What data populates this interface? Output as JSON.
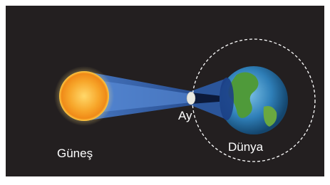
{
  "labels": {
    "sun": "Güneş",
    "moon": "Ay",
    "earth": "Dünya"
  }
}
